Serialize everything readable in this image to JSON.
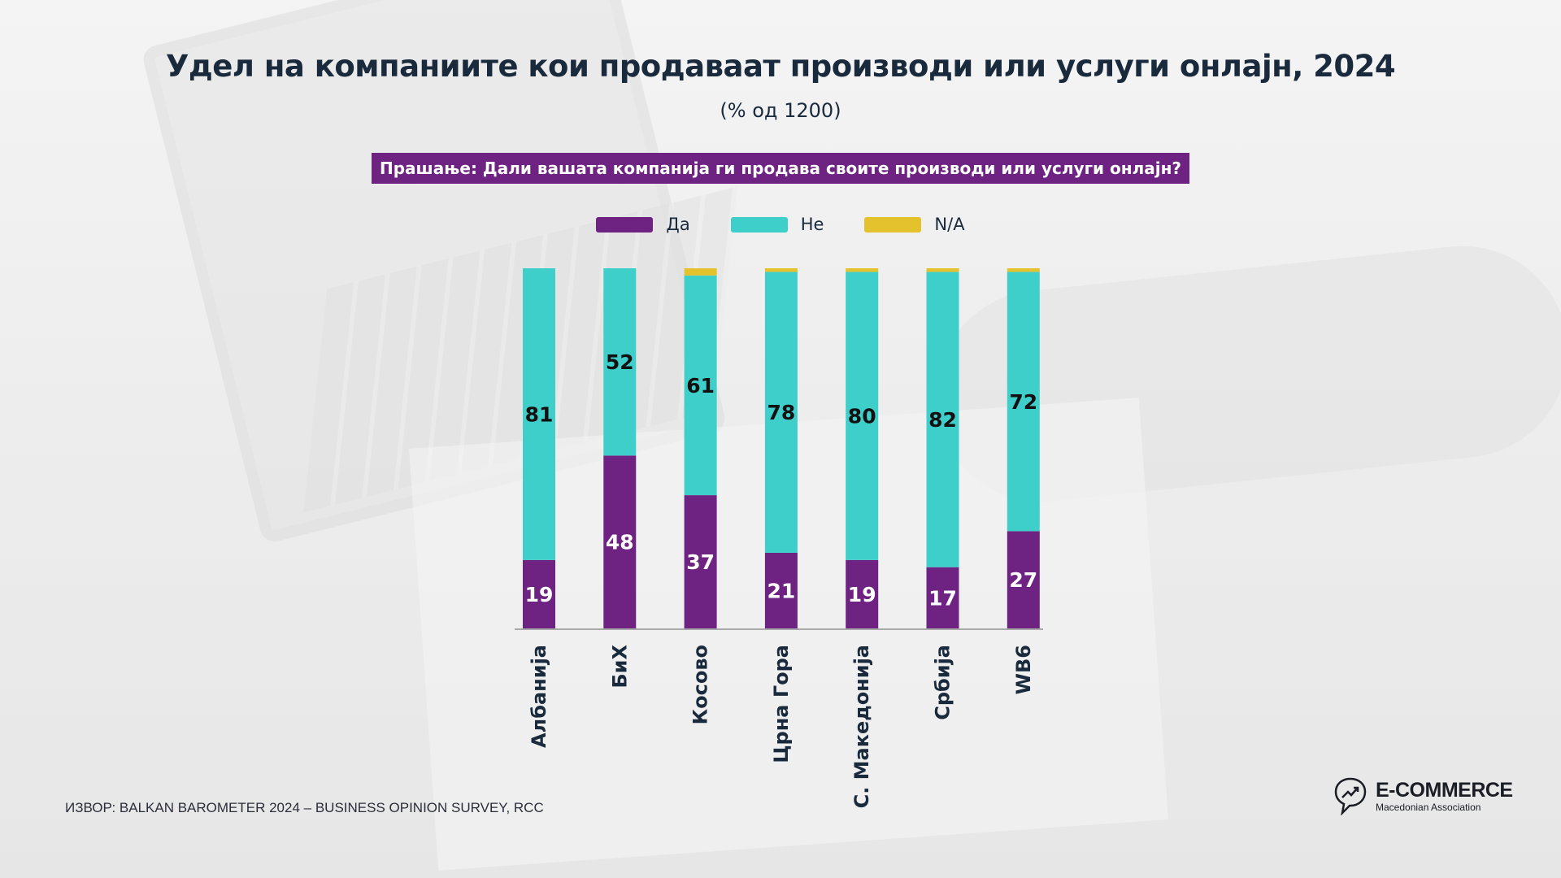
{
  "title": "Удел на компаниите кои продаваат производи или услуги онлајн, 2024",
  "subtitle": "(% од 1200)",
  "question": "Прашање: Дали вашата компанија ги продава своите производи или услуги онлајн?",
  "source": "ИЗВОР: BALKAN BAROMETER 2024 – BUSINESS OPINION SURVEY, RCC",
  "logo": {
    "main": "E-COMMERCE",
    "sub": "Macedonian Association"
  },
  "colors": {
    "yes": "#6e2383",
    "no": "#3ecfca",
    "na": "#e3c22e",
    "text": "#1a2a3d"
  },
  "chart_data": {
    "type": "bar",
    "stacked": true,
    "orientation": "vertical",
    "categories": [
      "Албанија",
      "БиХ",
      "Косово",
      "Црна Гора",
      "С. Македонија",
      "Србија",
      "WB6"
    ],
    "series": [
      {
        "name": "Да",
        "values": [
          19,
          48,
          37,
          21,
          19,
          17,
          27
        ]
      },
      {
        "name": "Не",
        "values": [
          81,
          52,
          61,
          78,
          80,
          82,
          72
        ]
      },
      {
        "name": "N/A",
        "values": [
          0,
          0,
          2,
          1,
          1,
          1,
          1
        ]
      }
    ],
    "ylim": [
      0,
      100
    ],
    "legend": "top",
    "grid": false,
    "data_labels": [
      "Да",
      "Не"
    ]
  }
}
